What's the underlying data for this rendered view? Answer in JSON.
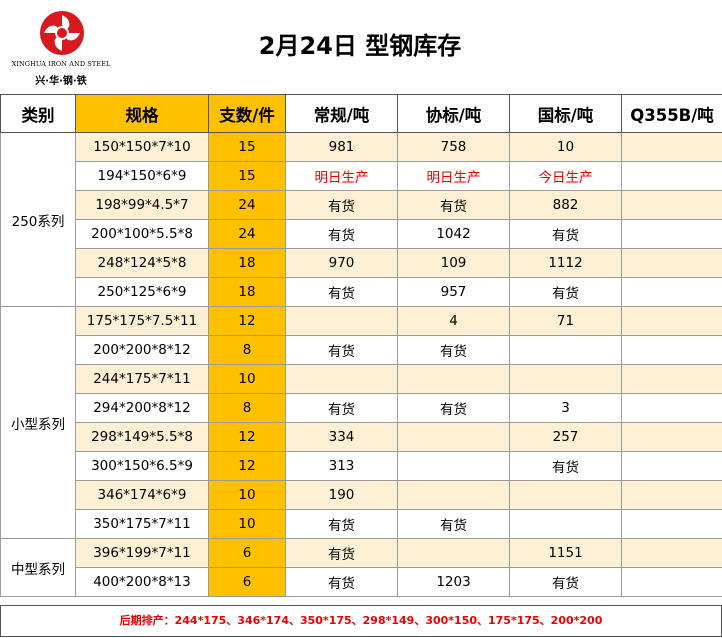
{
  "logo": {
    "english": "XINGHUA IRON AND STEEL",
    "chinese": "兴·华·钢·铁",
    "icon": "pinwheel-logo-icon",
    "color": "#d71920"
  },
  "title": "2月24日 型钢库存",
  "columns": [
    "类别",
    "规格",
    "支数/件",
    "常规/吨",
    "协标/吨",
    "国标/吨",
    "Q355B/吨"
  ],
  "groups": [
    {
      "category": "250系列",
      "rows": [
        {
          "spec": "150*150*7*10",
          "count": "15",
          "regular": "981",
          "xie": "758",
          "guo": "10",
          "q355b": ""
        },
        {
          "spec": "194*150*6*9",
          "count": "15",
          "regular": "明日生产",
          "xie": "明日生产",
          "guo": "今日生产",
          "q355b": ""
        },
        {
          "spec": "198*99*4.5*7",
          "count": "24",
          "regular": "有货",
          "xie": "有货",
          "guo": "882",
          "q355b": ""
        },
        {
          "spec": "200*100*5.5*8",
          "count": "24",
          "regular": "有货",
          "xie": "1042",
          "guo": "有货",
          "q355b": ""
        },
        {
          "spec": "248*124*5*8",
          "count": "18",
          "regular": "970",
          "xie": "109",
          "guo": "1112",
          "q355b": ""
        },
        {
          "spec": "250*125*6*9",
          "count": "18",
          "regular": "有货",
          "xie": "957",
          "guo": "有货",
          "q355b": ""
        }
      ]
    },
    {
      "category": "小型系列",
      "rows": [
        {
          "spec": "175*175*7.5*11",
          "count": "12",
          "regular": "",
          "xie": "4",
          "guo": "71",
          "q355b": ""
        },
        {
          "spec": "200*200*8*12",
          "count": "8",
          "regular": "有货",
          "xie": "有货",
          "guo": "",
          "q355b": ""
        },
        {
          "spec": "244*175*7*11",
          "count": "10",
          "regular": "",
          "xie": "",
          "guo": "",
          "q355b": ""
        },
        {
          "spec": "294*200*8*12",
          "count": "8",
          "regular": "有货",
          "xie": "有货",
          "guo": "3",
          "q355b": ""
        },
        {
          "spec": "298*149*5.5*8",
          "count": "12",
          "regular": "334",
          "xie": "",
          "guo": "257",
          "q355b": ""
        },
        {
          "spec": "300*150*6.5*9",
          "count": "12",
          "regular": "313",
          "xie": "",
          "guo": "有货",
          "q355b": ""
        },
        {
          "spec": "346*174*6*9",
          "count": "10",
          "regular": "190",
          "xie": "",
          "guo": "",
          "q355b": ""
        },
        {
          "spec": "350*175*7*11",
          "count": "10",
          "regular": "有货",
          "xie": "有货",
          "guo": "",
          "q355b": ""
        }
      ]
    },
    {
      "category": "中型系列",
      "rows": [
        {
          "spec": "396*199*7*11",
          "count": "6",
          "regular": "有货",
          "xie": "",
          "guo": "1151",
          "q355b": ""
        },
        {
          "spec": "400*200*8*13",
          "count": "6",
          "regular": "有货",
          "xie": "1203",
          "guo": "有货",
          "q355b": ""
        }
      ]
    }
  ],
  "footer": "后期排产：244*175、346*174、350*175、298*149、300*150、175*175、200*200",
  "colors": {
    "header_orange": "#ffc000",
    "stripe": "#fdf0d5",
    "production_red": "#ee0000"
  }
}
